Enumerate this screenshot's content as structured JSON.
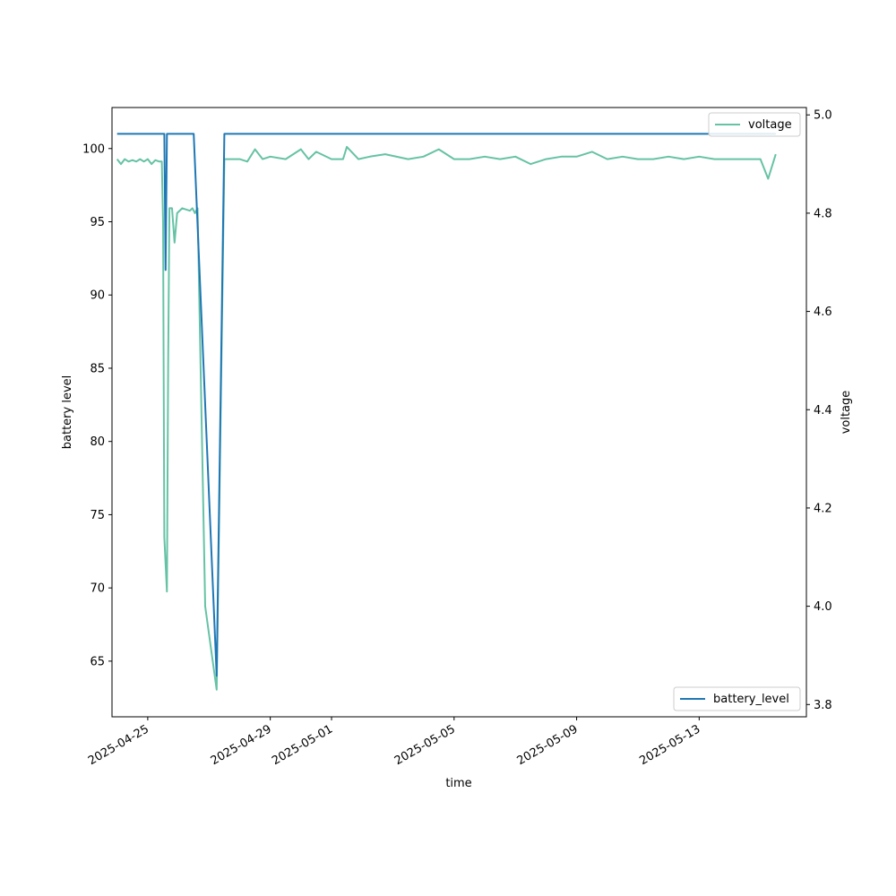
{
  "chart_data": {
    "type": "line",
    "xlabel": "time",
    "ylabel_left": "battery level",
    "ylabel_right": "voltage",
    "x_ticks": [
      "2025-04-25",
      "2025-04-29",
      "2025-05-01",
      "2025-05-05",
      "2025-05-09",
      "2025-05-13"
    ],
    "y_left_ticks": [
      "65",
      "70",
      "75",
      "80",
      "85",
      "90",
      "95",
      "100"
    ],
    "y_right_ticks": [
      "3.8",
      "4.0",
      "4.2",
      "4.4",
      "4.6",
      "4.8",
      "5.0"
    ],
    "x_range": [
      "2025-04-23 20:00",
      "2025-05-16 12:00"
    ],
    "y_left_range": [
      61.2,
      102.8
    ],
    "y_right_range": [
      3.775,
      5.015
    ],
    "legend_battery": {
      "label": "battery_level",
      "placement": "lower-right"
    },
    "legend_voltage": {
      "label": "voltage",
      "placement": "upper-right"
    },
    "series": [
      {
        "name": "battery_level",
        "axis": "left",
        "color": "#1f77b4",
        "points": [
          [
            "2025-04-24 00:00",
            101
          ],
          [
            "2025-04-25 12:00",
            101
          ],
          [
            "2025-04-25 13:00",
            101
          ],
          [
            "2025-04-25 14:00",
            91.7
          ],
          [
            "2025-04-25 15:00",
            101
          ],
          [
            "2025-04-25 16:00",
            101
          ],
          [
            "2025-04-26 12:00",
            101
          ],
          [
            "2025-04-27 06:00",
            64
          ],
          [
            "2025-04-27 12:00",
            101
          ],
          [
            "2025-05-15 12:00",
            101
          ]
        ]
      },
      {
        "name": "voltage",
        "axis": "right",
        "color": "#66c2a5",
        "points": [
          [
            "2025-04-24 00:00",
            4.91
          ],
          [
            "2025-04-24 03:00",
            4.9
          ],
          [
            "2025-04-24 06:00",
            4.91
          ],
          [
            "2025-04-24 09:00",
            4.905
          ],
          [
            "2025-04-24 12:00",
            4.908
          ],
          [
            "2025-04-24 15:00",
            4.905
          ],
          [
            "2025-04-24 18:00",
            4.91
          ],
          [
            "2025-04-24 21:00",
            4.905
          ],
          [
            "2025-04-25 00:00",
            4.91
          ],
          [
            "2025-04-25 03:00",
            4.9
          ],
          [
            "2025-04-25 06:00",
            4.908
          ],
          [
            "2025-04-25 09:00",
            4.905
          ],
          [
            "2025-04-25 11:00",
            4.905
          ],
          [
            "2025-04-25 12:00",
            4.78
          ],
          [
            "2025-04-25 13:00",
            4.14
          ],
          [
            "2025-04-25 15:00",
            4.03
          ],
          [
            "2025-04-25 16:00",
            4.5
          ],
          [
            "2025-04-25 17:00",
            4.81
          ],
          [
            "2025-04-25 19:00",
            4.81
          ],
          [
            "2025-04-25 21:00",
            4.74
          ],
          [
            "2025-04-25 23:00",
            4.8
          ],
          [
            "2025-04-26 03:00",
            4.81
          ],
          [
            "2025-04-26 09:00",
            4.805
          ],
          [
            "2025-04-26 11:00",
            4.81
          ],
          [
            "2025-04-26 13:00",
            4.8
          ],
          [
            "2025-04-26 15:00",
            4.81
          ],
          [
            "2025-04-26 21:00",
            4.0
          ],
          [
            "2025-04-27 06:00",
            3.83
          ],
          [
            "2025-04-27 12:00",
            4.91
          ],
          [
            "2025-04-27 15:00",
            4.91
          ],
          [
            "2025-04-28 00:00",
            4.91
          ],
          [
            "2025-04-28 06:00",
            4.905
          ],
          [
            "2025-04-28 12:00",
            4.93
          ],
          [
            "2025-04-28 18:00",
            4.91
          ],
          [
            "2025-04-29 00:00",
            4.915
          ],
          [
            "2025-04-29 12:00",
            4.91
          ],
          [
            "2025-04-30 00:00",
            4.93
          ],
          [
            "2025-04-30 06:00",
            4.91
          ],
          [
            "2025-04-30 12:00",
            4.925
          ],
          [
            "2025-05-01 00:00",
            4.91
          ],
          [
            "2025-05-01 09:00",
            4.91
          ],
          [
            "2025-05-01 12:00",
            4.935
          ],
          [
            "2025-05-01 21:00",
            4.91
          ],
          [
            "2025-05-02 06:00",
            4.915
          ],
          [
            "2025-05-02 18:00",
            4.92
          ],
          [
            "2025-05-03 12:00",
            4.91
          ],
          [
            "2025-05-04 00:00",
            4.915
          ],
          [
            "2025-05-04 12:00",
            4.93
          ],
          [
            "2025-05-05 00:00",
            4.91
          ],
          [
            "2025-05-05 12:00",
            4.91
          ],
          [
            "2025-05-06 00:00",
            4.915
          ],
          [
            "2025-05-06 12:00",
            4.91
          ],
          [
            "2025-05-07 00:00",
            4.915
          ],
          [
            "2025-05-07 12:00",
            4.9
          ],
          [
            "2025-05-08 00:00",
            4.91
          ],
          [
            "2025-05-08 12:00",
            4.915
          ],
          [
            "2025-05-09 00:00",
            4.915
          ],
          [
            "2025-05-09 12:00",
            4.925
          ],
          [
            "2025-05-10 00:00",
            4.91
          ],
          [
            "2025-05-10 12:00",
            4.915
          ],
          [
            "2025-05-11 00:00",
            4.91
          ],
          [
            "2025-05-11 12:00",
            4.91
          ],
          [
            "2025-05-12 00:00",
            4.915
          ],
          [
            "2025-05-12 12:00",
            4.91
          ],
          [
            "2025-05-13 00:00",
            4.915
          ],
          [
            "2025-05-13 12:00",
            4.91
          ],
          [
            "2025-05-14 00:00",
            4.91
          ],
          [
            "2025-05-14 12:00",
            4.91
          ],
          [
            "2025-05-15 00:00",
            4.91
          ],
          [
            "2025-05-15 06:00",
            4.87
          ],
          [
            "2025-05-15 12:00",
            4.92
          ]
        ]
      }
    ]
  }
}
